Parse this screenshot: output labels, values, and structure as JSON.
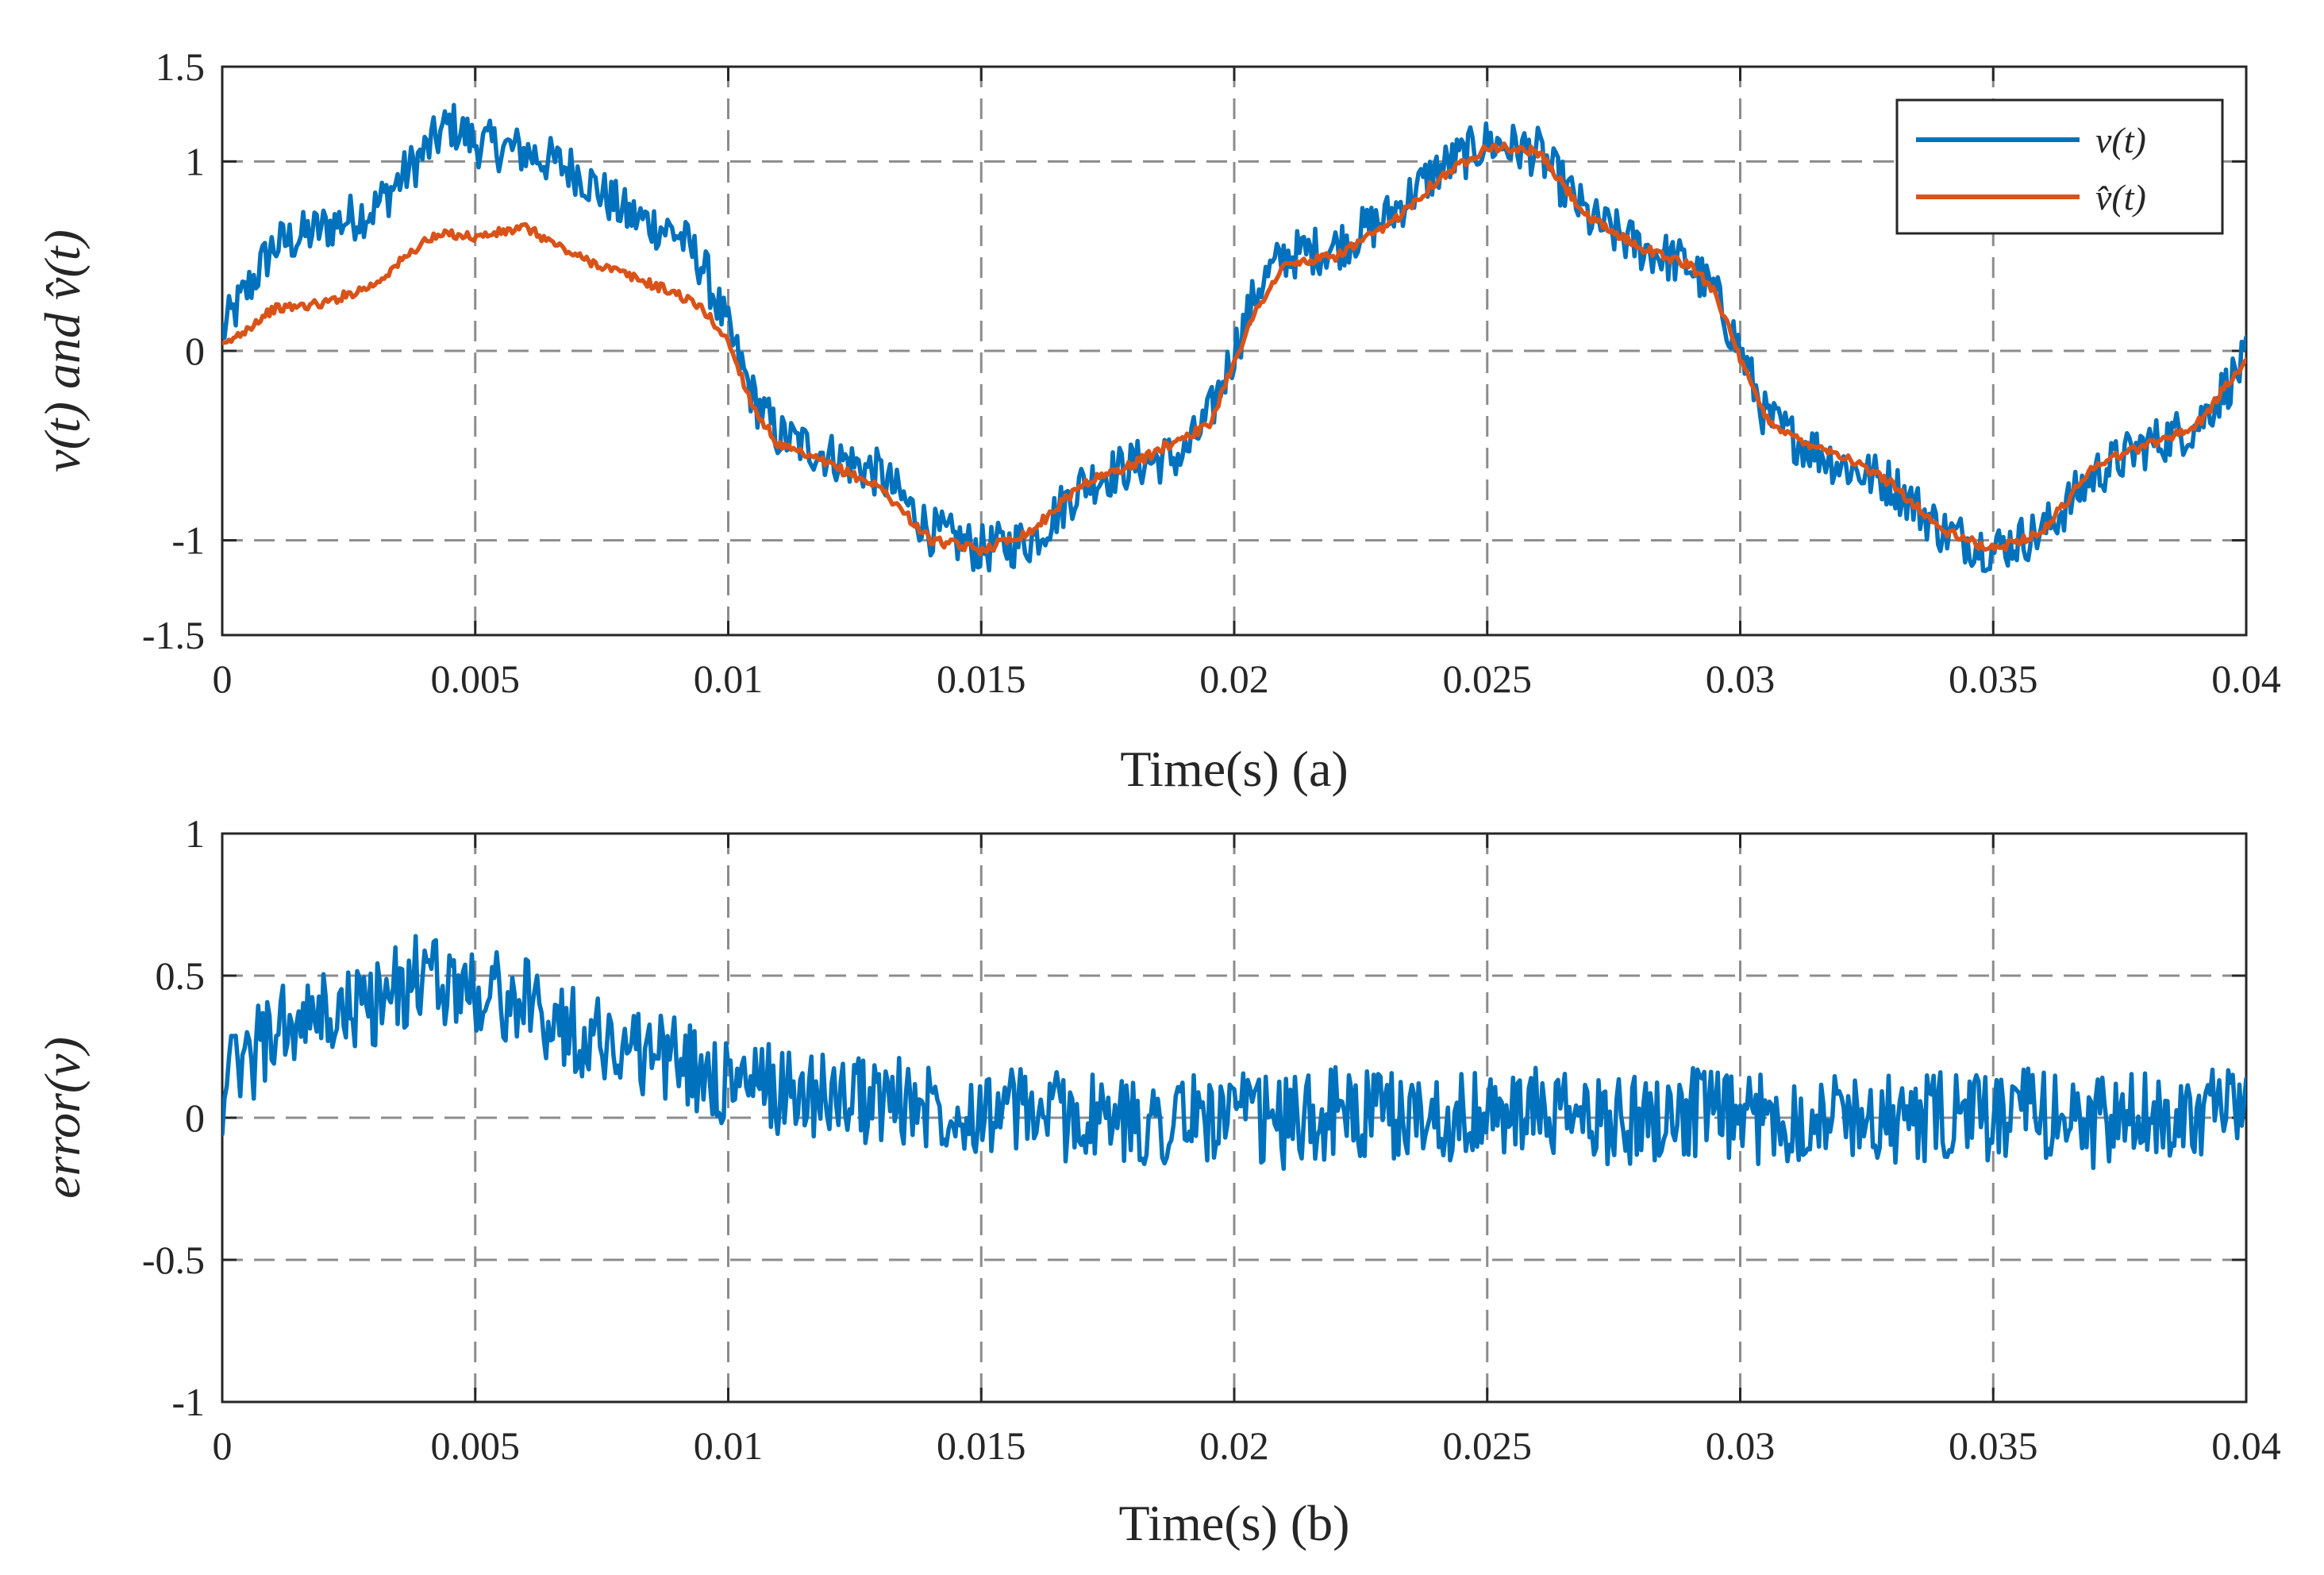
{
  "chart_data": [
    {
      "type": "line",
      "panel": "a",
      "xlabel": "Time(s) (a)",
      "ylabel": "v(t) and v̂(t)",
      "xlim": [
        0,
        0.04
      ],
      "ylim": [
        -1.5,
        1.5
      ],
      "xticks": [
        0,
        0.005,
        0.01,
        0.015,
        0.02,
        0.025,
        0.03,
        0.035,
        0.04
      ],
      "xtick_labels": [
        "0",
        "0.005",
        "0.01",
        "0.015",
        "0.02",
        "0.025",
        "0.03",
        "0.035",
        "0.04"
      ],
      "yticks": [
        1.5,
        1,
        0,
        -1,
        -1.5
      ],
      "ytick_labels": [
        "1.5",
        "1",
        "0",
        "-1",
        "-1.5"
      ],
      "grid": true,
      "legend_position": "top-right",
      "series": [
        {
          "name": "v(t)",
          "color": "#0072BD",
          "x": [
            0,
            0.001,
            0.002,
            0.003,
            0.004,
            0.0045,
            0.005,
            0.006,
            0.007,
            0.008,
            0.009,
            0.0095,
            0.01,
            0.0105,
            0.011,
            0.012,
            0.013,
            0.014,
            0.015,
            0.016,
            0.017,
            0.018,
            0.019,
            0.0195,
            0.02,
            0.0205,
            0.021,
            0.022,
            0.023,
            0.024,
            0.025,
            0.026,
            0.027,
            0.028,
            0.029,
            0.0295,
            0.03,
            0.0305,
            0.031,
            0.032,
            0.033,
            0.034,
            0.035,
            0.036,
            0.037,
            0.038,
            0.039,
            0.04
          ],
          "values": [
            0.1,
            0.55,
            0.65,
            0.75,
            1.05,
            1.2,
            1.1,
            1.05,
            0.95,
            0.72,
            0.62,
            0.45,
            0.1,
            -0.25,
            -0.45,
            -0.55,
            -0.65,
            -0.95,
            -1.05,
            -1.0,
            -0.7,
            -0.6,
            -0.55,
            -0.35,
            0.0,
            0.35,
            0.5,
            0.55,
            0.7,
            0.95,
            1.1,
            1.05,
            0.7,
            0.55,
            0.45,
            0.3,
            0.0,
            -0.35,
            -0.45,
            -0.6,
            -0.7,
            -0.95,
            -1.05,
            -0.95,
            -0.65,
            -0.5,
            -0.4,
            -0.05
          ]
        },
        {
          "name": "v̂(t)",
          "color": "#D95319",
          "x": [
            0,
            0.001,
            0.002,
            0.003,
            0.004,
            0.0045,
            0.005,
            0.006,
            0.007,
            0.008,
            0.009,
            0.0095,
            0.01,
            0.0105,
            0.011,
            0.012,
            0.013,
            0.014,
            0.015,
            0.016,
            0.017,
            0.018,
            0.019,
            0.0195,
            0.02,
            0.0205,
            0.021,
            0.022,
            0.023,
            0.024,
            0.025,
            0.026,
            0.027,
            0.028,
            0.029,
            0.0295,
            0.03,
            0.0305,
            0.031,
            0.032,
            0.033,
            0.034,
            0.035,
            0.036,
            0.037,
            0.038,
            0.039,
            0.04
          ],
          "values": [
            0.02,
            0.22,
            0.25,
            0.35,
            0.58,
            0.62,
            0.6,
            0.65,
            0.5,
            0.4,
            0.3,
            0.22,
            0.05,
            -0.3,
            -0.5,
            -0.6,
            -0.72,
            -1.0,
            -1.05,
            -0.95,
            -0.7,
            -0.6,
            -0.45,
            -0.4,
            -0.05,
            0.25,
            0.45,
            0.5,
            0.65,
            0.9,
            1.08,
            1.05,
            0.7,
            0.55,
            0.45,
            0.32,
            -0.05,
            -0.35,
            -0.45,
            -0.55,
            -0.7,
            -0.95,
            -1.05,
            -0.95,
            -0.6,
            -0.5,
            -0.4,
            -0.05
          ]
        }
      ]
    },
    {
      "type": "line",
      "panel": "b",
      "xlabel": "Time(s) (b)",
      "ylabel": "error(v)",
      "xlim": [
        0,
        0.04
      ],
      "ylim": [
        -1,
        1
      ],
      "xticks": [
        0,
        0.005,
        0.01,
        0.015,
        0.02,
        0.025,
        0.03,
        0.035,
        0.04
      ],
      "xtick_labels": [
        "0",
        "0.005",
        "0.01",
        "0.015",
        "0.02",
        "0.025",
        "0.03",
        "0.035",
        "0.04"
      ],
      "yticks": [
        1,
        0.5,
        0,
        -0.5,
        -1
      ],
      "ytick_labels": [
        "1",
        "0.5",
        "0",
        "-0.5",
        "-1"
      ],
      "grid": true,
      "series": [
        {
          "name": "error(v)",
          "color": "#0072BD",
          "x": [
            0,
            0.001,
            0.002,
            0.003,
            0.004,
            0.005,
            0.006,
            0.007,
            0.008,
            0.009,
            0.01,
            0.011,
            0.012,
            0.013,
            0.014,
            0.015,
            0.016,
            0.017,
            0.018,
            0.019,
            0.02,
            0.021,
            0.022,
            0.023,
            0.024,
            0.025,
            0.026,
            0.027,
            0.028,
            0.029,
            0.03,
            0.031,
            0.032,
            0.033,
            0.034,
            0.035,
            0.036,
            0.037,
            0.038,
            0.039,
            0.04
          ],
          "values": [
            0.1,
            0.3,
            0.35,
            0.4,
            0.5,
            0.45,
            0.4,
            0.3,
            0.25,
            0.2,
            0.12,
            0.1,
            0.08,
            0.06,
            0.05,
            0.03,
            0.02,
            0.0,
            -0.02,
            0.0,
            0.0,
            -0.02,
            0.02,
            0.0,
            0.01,
            0.0,
            0.02,
            -0.01,
            0.0,
            0.02,
            -0.01,
            0.0,
            0.02,
            -0.01,
            0.0,
            0.0,
            0.02,
            -0.02,
            0.0,
            0.03,
            0.0
          ]
        }
      ]
    }
  ],
  "legend": {
    "entries": [
      "v(t)",
      "v̂(t)"
    ]
  }
}
